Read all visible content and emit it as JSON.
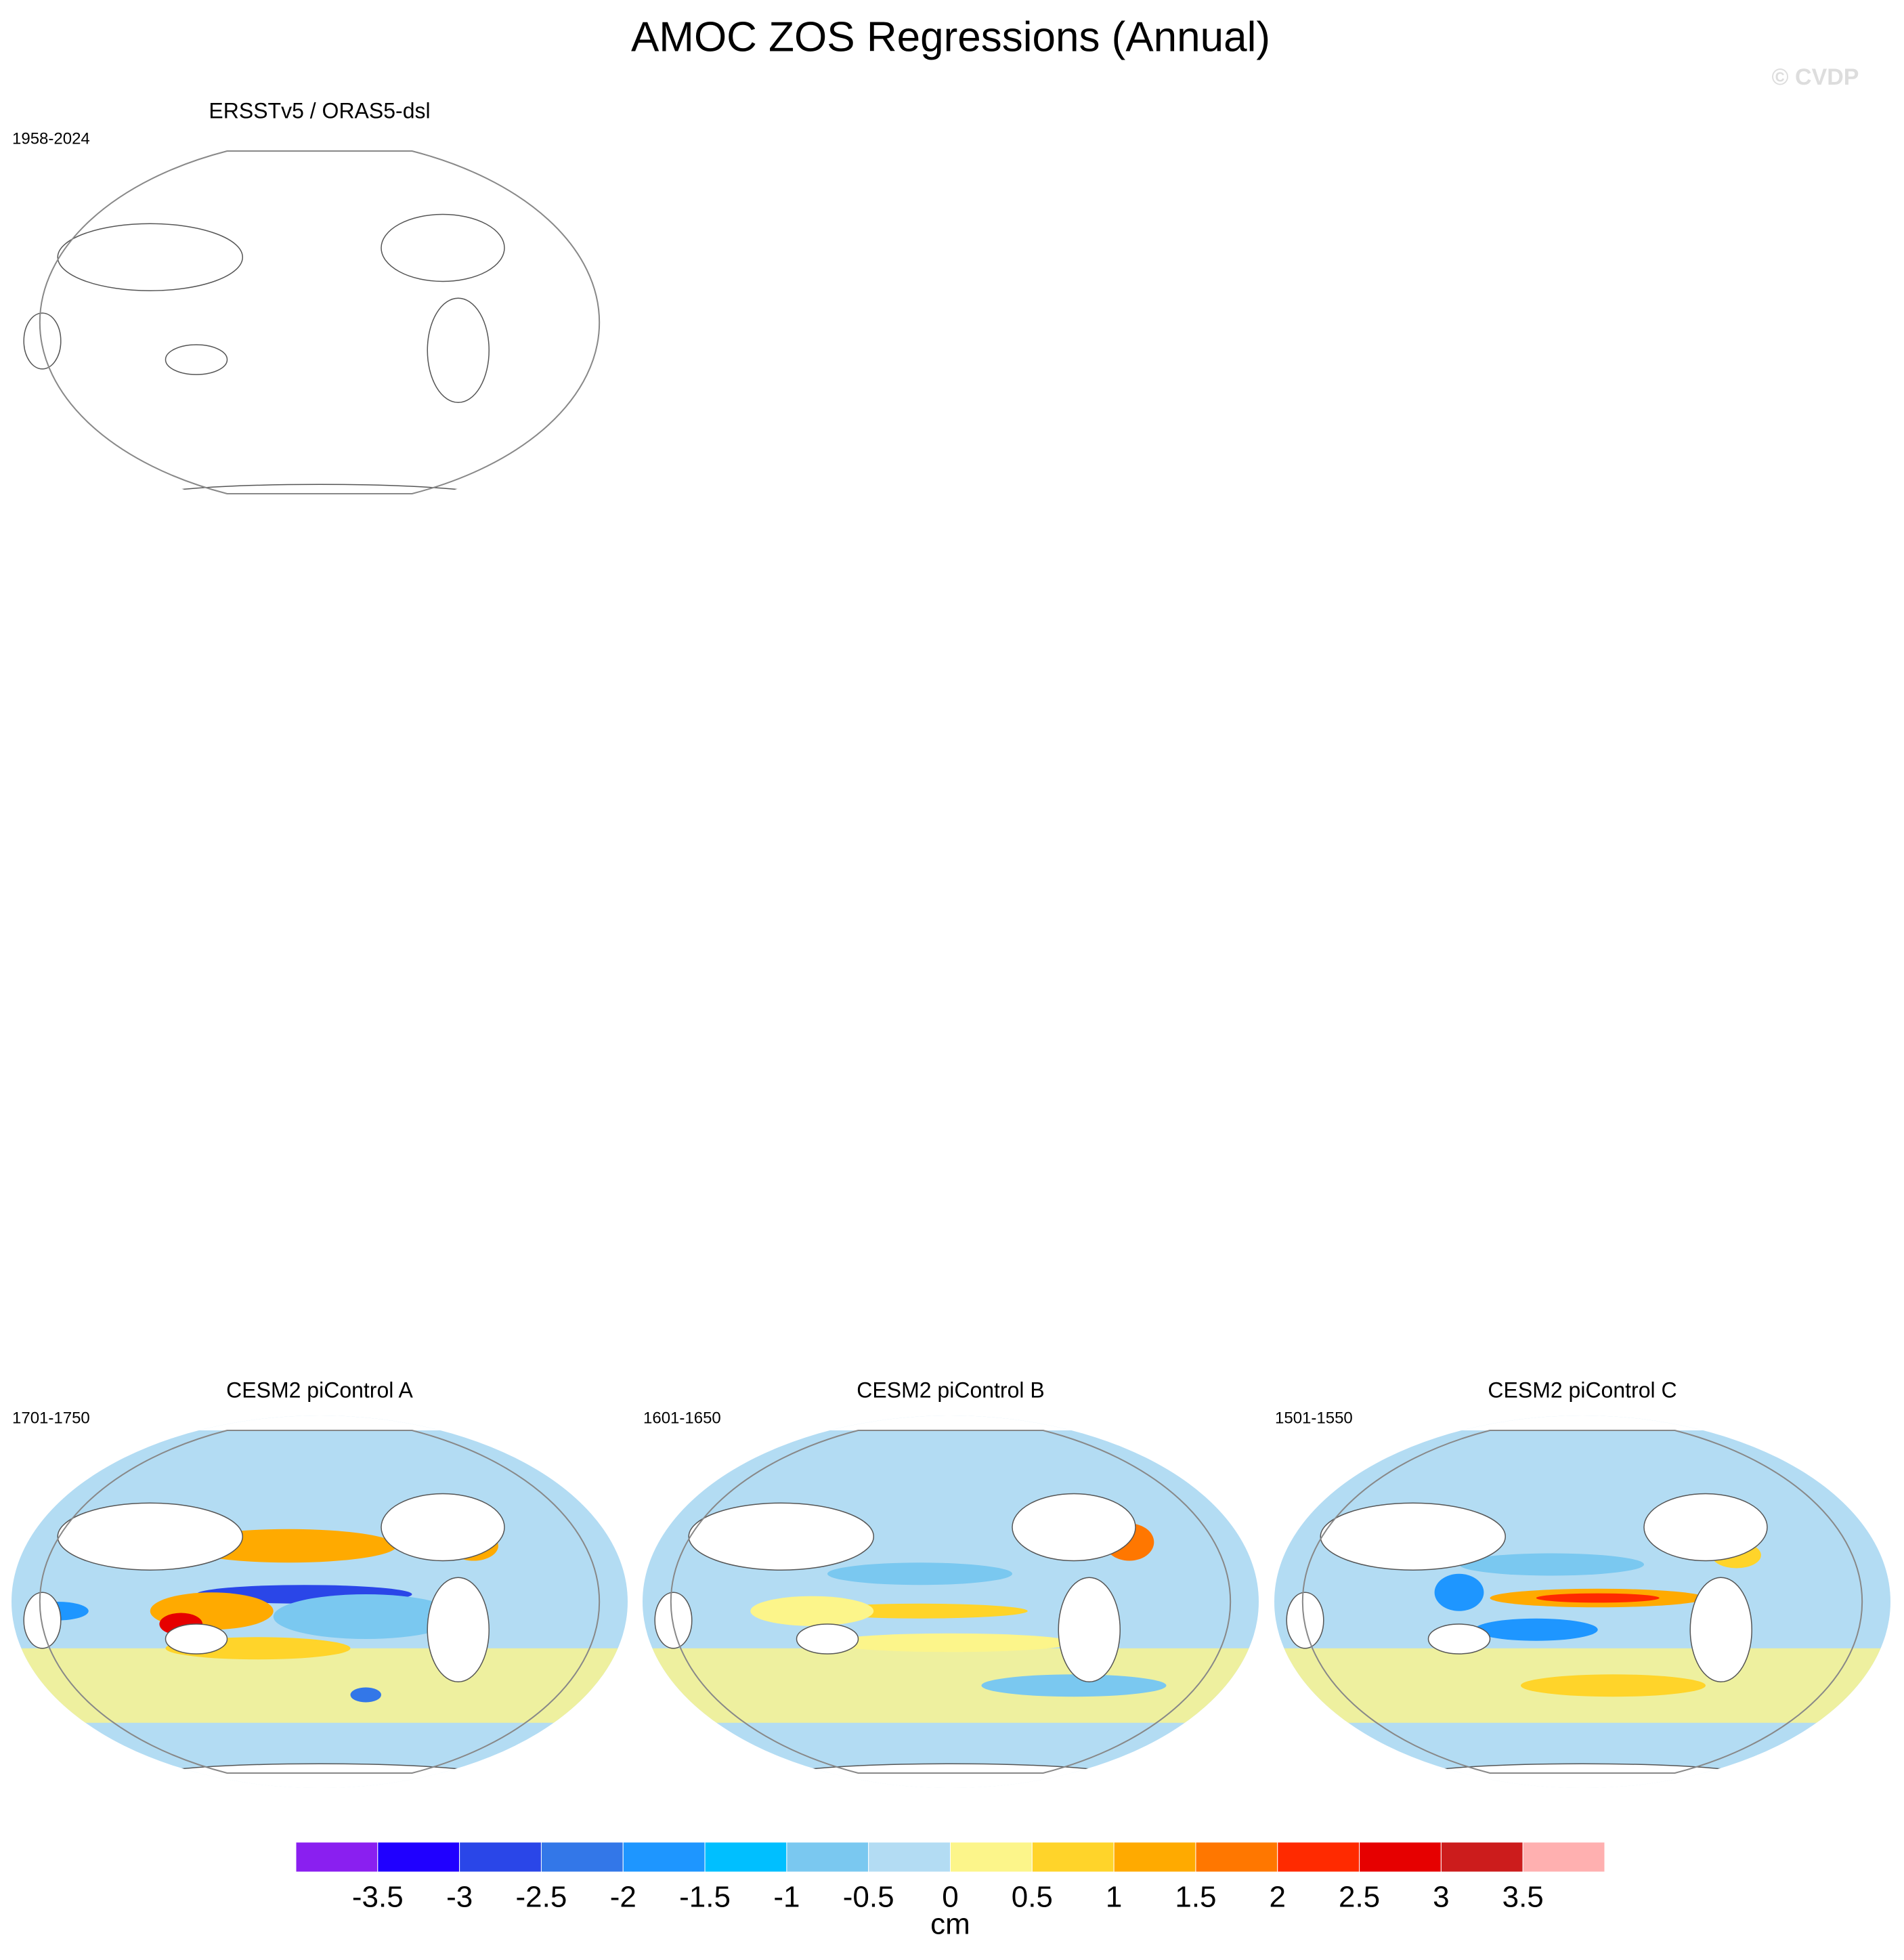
{
  "title": "AMOC ZOS Regressions (Annual)",
  "watermark": "© CVDP",
  "panels": [
    {
      "title": "ERSSTv5 / ORAS5-dsl",
      "period": "1958-2024",
      "filled": false
    },
    {
      "title": "CESM2 piControl A",
      "period": "1701-1750",
      "filled": true
    },
    {
      "title": "CESM2 piControl B",
      "period": "1601-1650",
      "filled": true
    },
    {
      "title": "CESM2 piControl C",
      "period": "1501-1550",
      "filled": true
    }
  ],
  "colorbar": {
    "levels": [
      -3.5,
      -3,
      -2.5,
      -2,
      -1.5,
      -1,
      -0.5,
      0,
      0.5,
      1,
      1.5,
      2,
      2.5,
      3,
      3.5
    ],
    "colors": [
      "#8a1ff0",
      "#2000ff",
      "#2a46e8",
      "#3377e8",
      "#1e96ff",
      "#00bfff",
      "#7ac8f0",
      "#b3dcf3",
      "#fcf58a",
      "#ffd42a",
      "#ffaa00",
      "#ff7700",
      "#ff2a00",
      "#e60000",
      "#cc1c1c",
      "#ffb0b0"
    ],
    "unit": "cm"
  }
}
